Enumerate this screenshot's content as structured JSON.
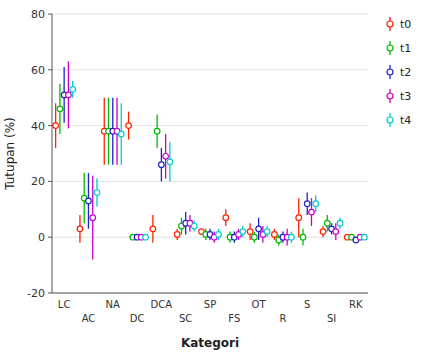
{
  "chart_data": {
    "type": "errorbar",
    "xlabel": "Kategori",
    "ylabel": "Tutupan (%)",
    "categories": [
      "LC",
      "AC",
      "NA",
      "DC",
      "DCA",
      "SC",
      "SP",
      "FS",
      "OT",
      "R",
      "S",
      "SI",
      "RK"
    ],
    "ylim": [
      -20,
      80
    ],
    "yticks": [
      -20,
      0,
      20,
      40,
      60,
      80
    ],
    "marker": "circle",
    "legend": "right",
    "series": [
      {
        "name": "t0",
        "color": "#FF2200",
        "values": [
          40,
          3,
          38,
          40,
          3,
          1,
          2,
          7,
          2,
          1,
          7,
          2,
          0
        ],
        "errors": [
          8,
          5,
          12,
          5,
          5,
          2,
          1,
          3,
          3,
          2,
          7,
          2,
          1
        ]
      },
      {
        "name": "t1",
        "color": "#00BB00",
        "values": [
          46,
          14,
          38,
          0,
          38,
          4,
          1,
          0,
          0,
          -1,
          0,
          5,
          0
        ],
        "errors": [
          9,
          9,
          12,
          1,
          6,
          3,
          2,
          2,
          2,
          2,
          3,
          3,
          1
        ]
      },
      {
        "name": "t2",
        "color": "#2222CC",
        "values": [
          51,
          13,
          38,
          0,
          26,
          5,
          1,
          0,
          3,
          0,
          12,
          3,
          -1
        ],
        "errors": [
          10,
          10,
          12,
          1,
          6,
          4,
          2,
          2,
          4,
          2,
          4,
          2,
          1
        ]
      },
      {
        "name": "t3",
        "color": "#CC00CC",
        "values": [
          51,
          7,
          38,
          0,
          29,
          5,
          0,
          1,
          1,
          0,
          9,
          2,
          0
        ],
        "errors": [
          12,
          15,
          12,
          1,
          8,
          3,
          2,
          2,
          3,
          3,
          5,
          3,
          1
        ]
      },
      {
        "name": "t4",
        "color": "#00CCCC",
        "values": [
          53,
          16,
          37,
          0,
          27,
          4,
          1,
          2,
          2,
          0,
          12,
          5,
          0
        ],
        "errors": [
          3,
          5,
          11,
          1,
          7,
          2,
          2,
          2,
          2,
          2,
          3,
          2,
          1
        ]
      }
    ]
  }
}
